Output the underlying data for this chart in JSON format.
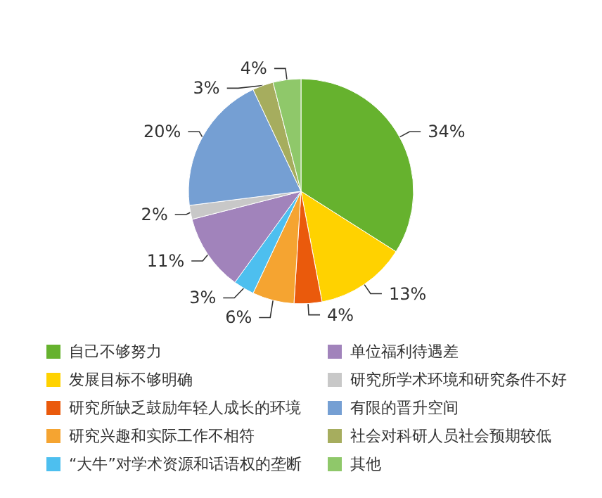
{
  "chart_data": {
    "type": "pie",
    "categories": [
      "自己不够努力",
      "发展目标不够明确",
      "研究所缺乏鼓励年轻人成长的环境",
      "研究兴趣和实际工作不相符",
      "“大牛”对学术资源和话语权的垄断",
      "单位福利待遇差",
      "研究所学术环境和研究条件不好",
      "有限的晋升空间",
      "社会对科研人员社会预期较低",
      "其他"
    ],
    "values": [
      34,
      13,
      4,
      6,
      3,
      11,
      2,
      20,
      3,
      4
    ],
    "value_labels": [
      "34%",
      "13%",
      "4%",
      "6%",
      "3%",
      "11%",
      "2%",
      "20%",
      "3%",
      "4%"
    ],
    "colors": [
      "#66b22e",
      "#ffd200",
      "#ea5a0c",
      "#f5a431",
      "#4dbfef",
      "#a183bb",
      "#c8c8c8",
      "#759fd3",
      "#a6ad5e",
      "#8fc86a"
    ],
    "legend": "bottom"
  }
}
